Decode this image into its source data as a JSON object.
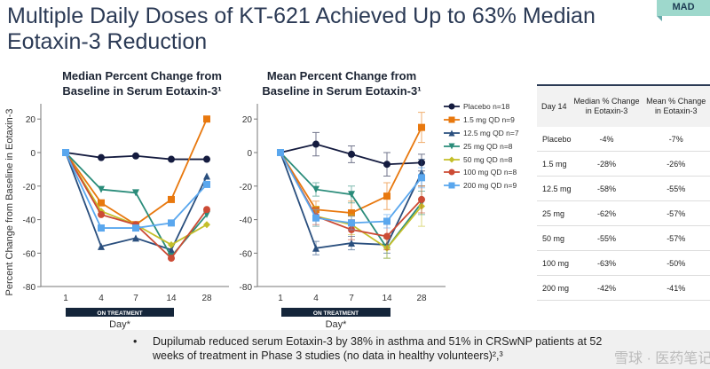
{
  "title": "Multiple Daily Doses of KT-621 Achieved Up to 63% Median Eotaxin-3 Reduction",
  "badge": "MAD",
  "chart_data": [
    {
      "type": "line",
      "title": "Median Percent Change from Baseline in Serum Eotaxin-3¹",
      "xlabel": "Day*",
      "ylabel": "Percent Change from Baseline in Eotaxin-3",
      "categories": [
        "1",
        "4",
        "7",
        "14",
        "28"
      ],
      "ylim": [
        -80,
        25
      ],
      "yticks": [
        20,
        0,
        -20,
        -40,
        -60,
        -80
      ],
      "treatment_label": "ON TREATMENT",
      "series": [
        {
          "name": "Placebo n=18",
          "color": "#141b3f",
          "marker": "circle",
          "values": [
            0,
            -3,
            -2,
            -4,
            -4
          ]
        },
        {
          "name": "1.5 mg QD n=9",
          "color": "#e8780e",
          "marker": "square",
          "values": [
            0,
            -30,
            -43,
            -28,
            20
          ]
        },
        {
          "name": "12.5 mg QD n=7",
          "color": "#2a4f7e",
          "marker": "triangle-up",
          "values": [
            0,
            -56,
            -51,
            -58,
            -14
          ]
        },
        {
          "name": "25 mg QD n=8",
          "color": "#2a8c7a",
          "marker": "triangle-down",
          "values": [
            0,
            -22,
            -24,
            -62,
            -37
          ]
        },
        {
          "name": "50 mg QD n=8",
          "color": "#c4bf2a",
          "marker": "diamond",
          "values": [
            0,
            -35,
            -43,
            -55,
            -43
          ]
        },
        {
          "name": "100 mg QD n=8",
          "color": "#cc4b35",
          "marker": "circle",
          "values": [
            0,
            -37,
            -43,
            -63,
            -34
          ]
        },
        {
          "name": "200 mg QD n=9",
          "color": "#5aa7ee",
          "marker": "square",
          "values": [
            0,
            -45,
            -45,
            -42,
            -19
          ]
        }
      ]
    },
    {
      "type": "line",
      "title": "Mean Percent Change from Baseline in Serum Eotaxin-3¹",
      "xlabel": "Day*",
      "categories": [
        "1",
        "4",
        "7",
        "14",
        "28"
      ],
      "ylim": [
        -80,
        25
      ],
      "yticks": [
        20,
        0,
        -20,
        -40,
        -60,
        -80
      ],
      "treatment_label": "ON TREATMENT",
      "series": [
        {
          "name": "Placebo n=18",
          "color": "#141b3f",
          "marker": "circle",
          "values": [
            0,
            5,
            -1,
            -7,
            -6
          ],
          "errors": [
            0,
            7,
            5,
            7,
            5
          ]
        },
        {
          "name": "1.5 mg QD n=9",
          "color": "#e8780e",
          "marker": "square",
          "values": [
            0,
            -34,
            -36,
            -26,
            15
          ],
          "errors": [
            0,
            5,
            7,
            8,
            9
          ]
        },
        {
          "name": "12.5 mg QD n=7",
          "color": "#2a4f7e",
          "marker": "triangle-up",
          "values": [
            0,
            -57,
            -54,
            -55,
            -12
          ],
          "errors": [
            0,
            4,
            4,
            5,
            8
          ]
        },
        {
          "name": "25 mg QD n=8",
          "color": "#2a8c7a",
          "marker": "triangle-down",
          "values": [
            0,
            -22,
            -25,
            -57,
            -30
          ],
          "errors": [
            0,
            4,
            5,
            6,
            7
          ]
        },
        {
          "name": "50 mg QD n=8",
          "color": "#c4bf2a",
          "marker": "diamond",
          "values": [
            0,
            -38,
            -43,
            -57,
            -32
          ],
          "errors": [
            0,
            6,
            6,
            6,
            12
          ]
        },
        {
          "name": "100 mg QD n=8",
          "color": "#cc4b35",
          "marker": "circle",
          "values": [
            0,
            -38,
            -46,
            -50,
            -28
          ],
          "errors": [
            0,
            5,
            6,
            8,
            8
          ]
        },
        {
          "name": "200 mg QD n=9",
          "color": "#5aa7ee",
          "marker": "square",
          "values": [
            0,
            -39,
            -42,
            -41,
            -15
          ],
          "errors": [
            0,
            5,
            4,
            4,
            6
          ]
        }
      ]
    }
  ],
  "table": {
    "headers": [
      "Day 14",
      "Median % Change in Eotaxin-3",
      "Mean % Change in Eotaxin-3"
    ],
    "rows": [
      [
        "Placebo",
        "-4%",
        "-7%"
      ],
      [
        "1.5 mg",
        "-28%",
        "-26%"
      ],
      [
        "12.5 mg",
        "-58%",
        "-55%"
      ],
      [
        "25 mg",
        "-62%",
        "-57%"
      ],
      [
        "50 mg",
        "-55%",
        "-57%"
      ],
      [
        "100 mg",
        "-63%",
        "-50%"
      ],
      [
        "200 mg",
        "-42%",
        "-41%"
      ]
    ]
  },
  "footer": {
    "bullet": "•",
    "text": "Dupilumab reduced serum Eotaxin-3 by 38% in asthma and 51% in CRSwNP patients at 52 weeks of treatment in Phase 3 studies (no data in healthy volunteers)²,³",
    "watermark": "雪球 · 医药笔记"
  }
}
